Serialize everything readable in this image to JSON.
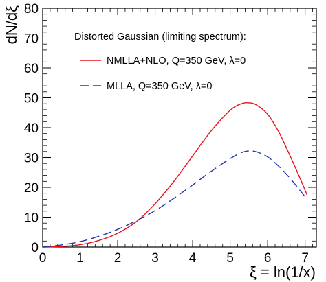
{
  "chart_data": {
    "type": "line",
    "title": "",
    "xlabel": "ξ = ln(1/x)",
    "ylabel": "dN/dξ",
    "xlim": [
      0,
      7.3
    ],
    "ylim": [
      0,
      80
    ],
    "xticks": [
      0,
      1,
      2,
      3,
      4,
      5,
      6,
      7
    ],
    "yticks": [
      0,
      10,
      20,
      30,
      40,
      50,
      60,
      70,
      80
    ],
    "grid": false,
    "legend": {
      "placement": "top-center",
      "header": "Distorted Gaussian (limiting spectrum):"
    },
    "series": [
      {
        "name": "NMLLA+NLO, Q=350 GeV, λ=0",
        "color": "#e8101c",
        "style": "solid",
        "x": [
          0,
          0.5,
          1.0,
          1.5,
          2.0,
          2.5,
          3.0,
          3.5,
          4.0,
          4.5,
          5.0,
          5.3,
          5.5,
          5.7,
          6.0,
          6.3,
          6.6,
          6.9,
          7.05
        ],
        "y": [
          0,
          0.2,
          0.8,
          2.2,
          4.6,
          8.5,
          14.5,
          22.0,
          30.5,
          39.0,
          45.8,
          48.0,
          48.3,
          47.6,
          44.5,
          38.5,
          30.5,
          22.0,
          17.5
        ]
      },
      {
        "name": "MLLA, Q=350 GeV, λ=0",
        "color": "#2233aa",
        "style": "dashed",
        "x": [
          0,
          0.5,
          1.0,
          1.5,
          2.0,
          2.5,
          3.0,
          3.5,
          4.0,
          4.5,
          5.0,
          5.3,
          5.5,
          5.7,
          6.0,
          6.3,
          6.6,
          6.9,
          7.05
        ],
        "y": [
          0,
          0.7,
          1.8,
          3.6,
          5.9,
          8.8,
          12.2,
          16.3,
          20.8,
          25.4,
          29.6,
          31.6,
          32.2,
          31.9,
          30.2,
          27.0,
          23.0,
          18.4,
          15.8
        ]
      }
    ]
  }
}
